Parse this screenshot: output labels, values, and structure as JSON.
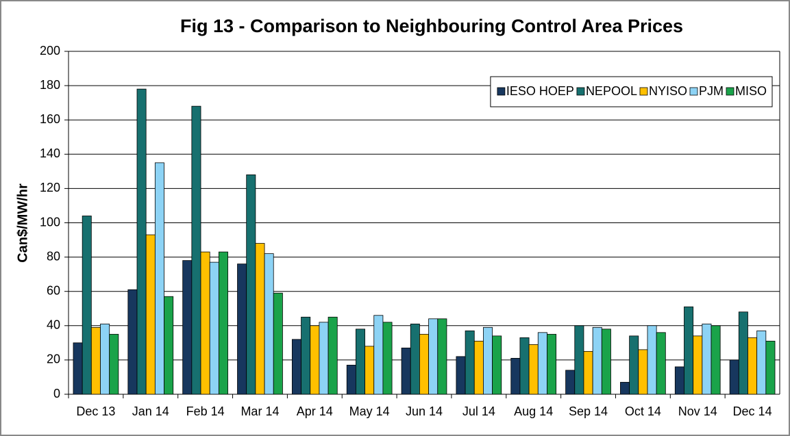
{
  "chart_data": {
    "type": "bar",
    "title": "Fig  13 - Comparison to Neighbouring Control Area Prices",
    "y_label": "Can$/MW/hr",
    "categories": [
      "Dec 13",
      "Jan 14",
      "Feb 14",
      "Mar 14",
      "Apr 14",
      "May 14",
      "Jun 14",
      "Jul 14",
      "Aug 14",
      "Sep 14",
      "Oct 14",
      "Nov 14",
      "Dec 14"
    ],
    "series": [
      {
        "name": "IESO HOEP",
        "color": "#17375e",
        "values": [
          30,
          61,
          78,
          76,
          32,
          17,
          27,
          22,
          21,
          14,
          7,
          16,
          20
        ]
      },
      {
        "name": "NEPOOL",
        "color": "#17706f",
        "values": [
          104,
          178,
          168,
          128,
          45,
          38,
          41,
          37,
          33,
          40,
          34,
          51,
          48
        ]
      },
      {
        "name": "NYISO",
        "color": "#ffc000",
        "values": [
          39,
          93,
          83,
          88,
          40,
          28,
          35,
          31,
          29,
          25,
          26,
          34,
          33
        ]
      },
      {
        "name": "PJM",
        "color": "#8dd3f5",
        "values": [
          41,
          135,
          77,
          82,
          42,
          46,
          44,
          39,
          36,
          39,
          40,
          41,
          37
        ]
      },
      {
        "name": "MISO",
        "color": "#1aa34a",
        "values": [
          35,
          57,
          83,
          59,
          45,
          42,
          44,
          34,
          35,
          38,
          36,
          40,
          31
        ]
      }
    ],
    "ylim": [
      0,
      200
    ],
    "yticks": [
      0,
      20,
      40,
      60,
      80,
      100,
      120,
      140,
      160,
      180,
      200
    ],
    "grid": true,
    "legend": "top-right"
  }
}
